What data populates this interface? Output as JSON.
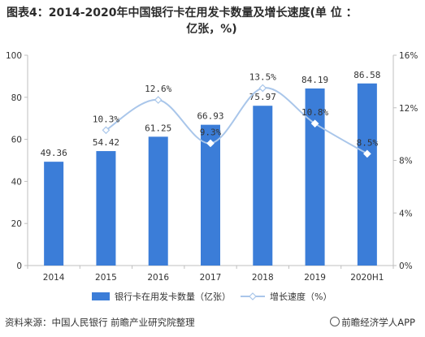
{
  "title": {
    "line1": "图表4：2014-2020年中国银行卡在用发卡数量及增长速度(单 位 ：",
    "line2": "亿张，%)"
  },
  "footer": {
    "source": "资料来源：中国人民银行  前瞻产业研究院整理",
    "logo": "前瞻经济学人APP"
  },
  "colors": {
    "bar": "#3b7dd8",
    "line": "#a9c6ea",
    "marker": "#ffffff",
    "axis": "#bfbfbf"
  },
  "chart_data": {
    "type": "bar",
    "categories": [
      "2014",
      "2015",
      "2016",
      "2017",
      "2018",
      "2019",
      "2020H1"
    ],
    "series": [
      {
        "name": "银行卡在用发卡数量（亿张）",
        "type": "bar",
        "axis": "left",
        "values": [
          49.36,
          54.42,
          61.25,
          66.93,
          75.97,
          84.19,
          86.58
        ],
        "labels": [
          "49.36",
          "54.42",
          "61.25",
          "66.93",
          "75.97",
          "84.19",
          "86.58"
        ]
      },
      {
        "name": "增长速度（%）",
        "type": "line",
        "axis": "right",
        "values": [
          null,
          10.3,
          12.6,
          9.3,
          13.5,
          10.8,
          8.5
        ],
        "labels": [
          "",
          "10.3%",
          "12.6%",
          "9.3%",
          "13.5%",
          "10.8%",
          "8.5%"
        ]
      }
    ],
    "y_left": {
      "min": 0,
      "max": 100,
      "ticks": [
        "0",
        "20",
        "40",
        "60",
        "80",
        "100"
      ]
    },
    "y_right": {
      "min": 0,
      "max": 16,
      "ticks": [
        "0%",
        "4%",
        "8%",
        "12%",
        "16%"
      ]
    },
    "grid": false,
    "legend": "bottom"
  }
}
